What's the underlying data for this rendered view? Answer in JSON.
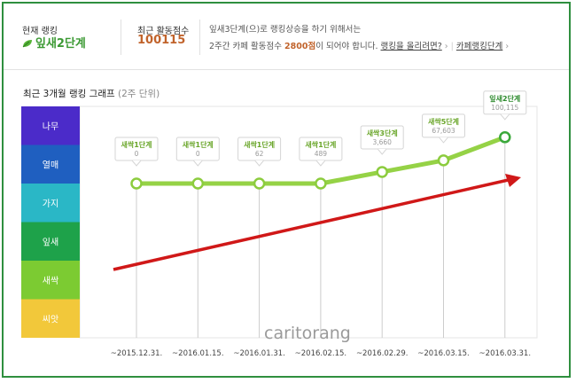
{
  "summary": {
    "current_rank_label": "현재 랭킹",
    "current_rank": "잎새2단계",
    "score_label": "최근 활동점수",
    "score": "100115",
    "desc_line1": "잎새3단계(으)로 랭킹상승을 하기 위해서는",
    "desc_pre": "2주간 카페 활동점수",
    "desc_points": "2800점",
    "desc_post": "이 되어야 합니다.",
    "link_raise": "랭킹을 올리려면?",
    "link_ranking": "카페랭킹단계"
  },
  "section": {
    "title": "최근 3개월 랭킹 그래프",
    "subtitle": "(2주 단위)"
  },
  "watermark": "caritorang",
  "colors": {
    "accent_green": "#3c9a34",
    "score_orange": "#c1632b",
    "arrow_red": "#d01818"
  },
  "chart_data": {
    "type": "line",
    "levels": [
      {
        "name": "나무",
        "color": "#4b2bc9"
      },
      {
        "name": "열매",
        "color": "#1f5fc0"
      },
      {
        "name": "가지",
        "color": "#2ab7c6"
      },
      {
        "name": "잎새",
        "color": "#1ea24a"
      },
      {
        "name": "새싹",
        "color": "#7ccb32"
      },
      {
        "name": "씨앗",
        "color": "#f2c83a"
      }
    ],
    "x": [
      "~2015.12.31.",
      "~2016.01.15.",
      "~2016.01.31.",
      "~2016.02.15.",
      "~2016.02.29.",
      "~2016.03.15.",
      "~2016.03.31."
    ],
    "points": [
      {
        "stage": "새싹1단계",
        "score": "0",
        "y": 4.0
      },
      {
        "stage": "새싹1단계",
        "score": "0",
        "y": 4.0
      },
      {
        "stage": "새싹1단계",
        "score": "62",
        "y": 4.0
      },
      {
        "stage": "새싹1단계",
        "score": "489",
        "y": 4.0
      },
      {
        "stage": "새싹3단계",
        "score": "3,660",
        "y": 4.3
      },
      {
        "stage": "새싹5단계",
        "score": "67,603",
        "y": 4.6
      },
      {
        "stage": "잎새2단계",
        "score": "100,115",
        "y": 5.2
      }
    ]
  }
}
